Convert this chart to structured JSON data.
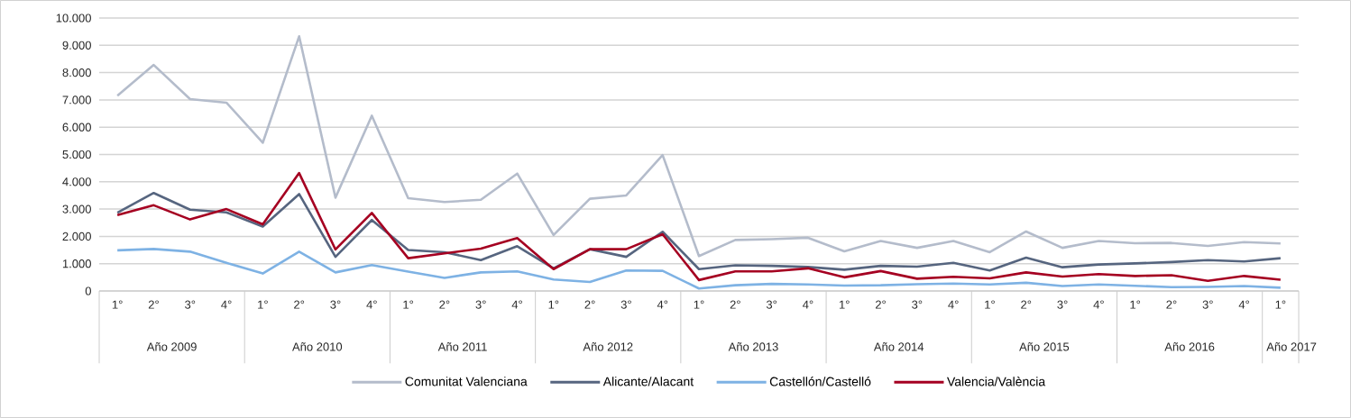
{
  "chart_data": {
    "type": "line",
    "categories": [
      "1°",
      "2°",
      "3°",
      "4°",
      "1°",
      "2°",
      "3°",
      "4°",
      "1°",
      "2°",
      "3°",
      "4°",
      "1°",
      "2°",
      "3°",
      "4°",
      "1°",
      "2°",
      "3°",
      "4°",
      "1°",
      "2°",
      "3°",
      "4°",
      "1°",
      "2°",
      "3°",
      "4°",
      "1°",
      "2°",
      "3°",
      "4°",
      "1°"
    ],
    "annotations": [
      "Año 2009",
      "Año 2010",
      "Año 2011",
      "Año 2012",
      "Año 2013",
      "Año 2014",
      "Año 2015",
      "Año 2016",
      "Año 2017"
    ],
    "series": [
      {
        "name": "Comunitat Valenciana",
        "color": "#b4bccb",
        "values": [
          7150,
          8280,
          7030,
          6900,
          5430,
          9330,
          3420,
          6420,
          3400,
          3260,
          3340,
          4300,
          2050,
          3380,
          3500,
          4980,
          1280,
          1870,
          1900,
          1950,
          1450,
          1830,
          1580,
          1830,
          1420,
          2180,
          1580,
          1830,
          1750,
          1760,
          1650,
          1790,
          1740
        ]
      },
      {
        "name": "Alicante/Alacant",
        "color": "#56657f",
        "values": [
          2870,
          3590,
          2980,
          2880,
          2360,
          3550,
          1250,
          2600,
          1500,
          1420,
          1130,
          1640,
          830,
          1530,
          1250,
          2170,
          800,
          940,
          920,
          880,
          780,
          920,
          890,
          1030,
          750,
          1220,
          870,
          970,
          1010,
          1060,
          1130,
          1080,
          1200
        ]
      },
      {
        "name": "Castellón/Castelló",
        "color": "#7eb2e4",
        "values": [
          1490,
          1540,
          1440,
          1030,
          640,
          1440,
          680,
          950,
          710,
          480,
          680,
          720,
          420,
          330,
          750,
          740,
          90,
          210,
          260,
          240,
          200,
          210,
          250,
          270,
          240,
          300,
          180,
          240,
          190,
          140,
          150,
          180,
          120
        ]
      },
      {
        "name": "Valencia/València",
        "color": "#a50021",
        "values": [
          2780,
          3140,
          2620,
          3000,
          2440,
          4320,
          1520,
          2860,
          1200,
          1380,
          1550,
          1940,
          800,
          1530,
          1530,
          2080,
          400,
          720,
          720,
          830,
          500,
          730,
          450,
          520,
          460,
          680,
          530,
          620,
          550,
          580,
          370,
          550,
          410
        ]
      }
    ],
    "ylim": [
      0,
      10000
    ],
    "yticks": [
      {
        "value": 0,
        "label": "0"
      },
      {
        "value": 1000,
        "label": "1.000"
      },
      {
        "value": 2000,
        "label": "2.000"
      },
      {
        "value": 3000,
        "label": "3.000"
      },
      {
        "value": 4000,
        "label": "4.000"
      },
      {
        "value": 5000,
        "label": "5.000"
      },
      {
        "value": 6000,
        "label": "6.000"
      },
      {
        "value": 7000,
        "label": "7.000"
      },
      {
        "value": 8000,
        "label": "8.000"
      },
      {
        "value": 9000,
        "label": "9.000"
      },
      {
        "value": 10000,
        "label": "10.000"
      }
    ],
    "grid": "y",
    "legend": "bottom",
    "marker": "none",
    "line_style": "solid"
  }
}
